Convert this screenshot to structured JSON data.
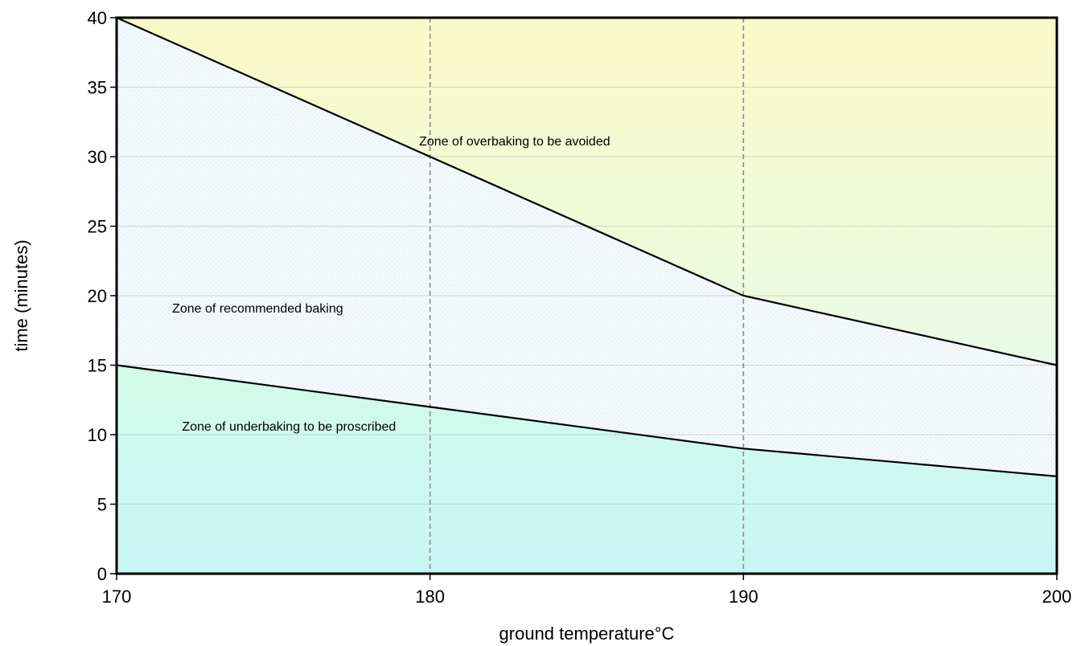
{
  "chart_data": {
    "type": "area",
    "xlabel": "ground temperature°C",
    "ylabel": "time (minutes)",
    "xlim": [
      170,
      200
    ],
    "ylim": [
      0,
      40
    ],
    "x_ticks": [
      170,
      180,
      190,
      200
    ],
    "y_ticks": [
      0,
      5,
      10,
      15,
      20,
      25,
      30,
      35,
      40
    ],
    "x": [
      170,
      180,
      190,
      200
    ],
    "series": [
      {
        "values": [
          40,
          30,
          20,
          15
        ]
      },
      {
        "values": [
          15,
          12,
          9,
          7
        ]
      }
    ],
    "zones": [
      {
        "label": "Zone of overbaking to be avoided",
        "x": 182.7,
        "y": 30.8
      },
      {
        "label": "Zone of recommended baking",
        "x": 174.5,
        "y": 18.8
      },
      {
        "label": "Zone of underbaking to be proscribed",
        "x": 175.5,
        "y": 10.3
      }
    ],
    "vertical_gridlines": [
      180,
      190
    ],
    "horizontal_gridlines": [
      5,
      10,
      15,
      20,
      25,
      30,
      35
    ],
    "colors": {
      "over_zone_top": "#fbfac6",
      "over_zone_bottom": "#e8fbe6",
      "recommended_zone": "#f3f8fb",
      "under_zone_top": "#d3fbe9",
      "under_zone_bottom": "#c8f6f6",
      "line": "#000000",
      "vgrid": "#8a8a8a",
      "hgrid": "#9a9a9a"
    }
  }
}
